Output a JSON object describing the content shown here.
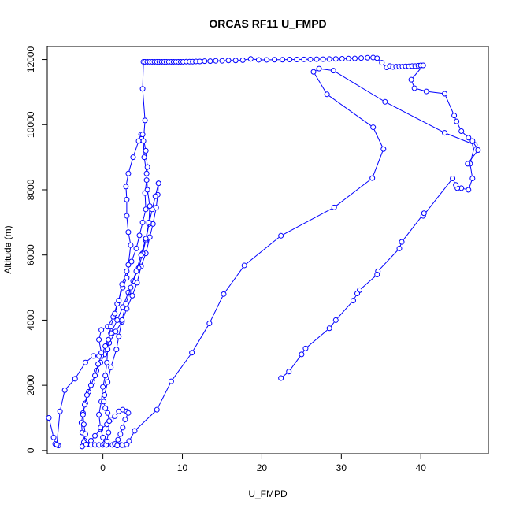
{
  "chart_data": {
    "type": "line",
    "title": "ORCAS RF11 U_FMPD",
    "xlabel": "U_FMPD",
    "ylabel": "Altitude (m)",
    "xlim": [
      -7,
      48.5
    ],
    "ylim": [
      -100,
      12400
    ],
    "xticks": [
      0,
      10,
      20,
      30,
      40
    ],
    "yticks": [
      0,
      2000,
      4000,
      6000,
      8000,
      10000,
      12000
    ],
    "grid": false,
    "series_color": "#0000ff",
    "marker": "open-circle",
    "series": [
      {
        "values": [
          [
            7.0,
            8200
          ],
          [
            6.9,
            7850
          ],
          [
            6.7,
            7450
          ],
          [
            6.3,
            6950
          ],
          [
            5.9,
            6550
          ],
          [
            5.4,
            6050
          ],
          [
            4.8,
            5650
          ],
          [
            4.3,
            5150
          ],
          [
            3.7,
            4750
          ],
          [
            3.0,
            4350
          ],
          [
            2.4,
            3950
          ],
          [
            1.6,
            3650
          ],
          [
            0.8,
            3300
          ],
          [
            0.2,
            2950
          ],
          [
            -0.3,
            2700
          ],
          [
            -0.8,
            2450
          ],
          [
            -1.3,
            2100
          ],
          [
            -1.8,
            1800
          ],
          [
            -2.2,
            1450
          ],
          [
            -2.5,
            1150
          ],
          [
            -2.7,
            850
          ],
          [
            -2.6,
            550
          ],
          [
            -2.3,
            300
          ],
          [
            -2.0,
            180
          ],
          [
            -1.5,
            170
          ],
          [
            -1.0,
            170
          ],
          [
            -0.5,
            170
          ],
          [
            0.0,
            170
          ],
          [
            0.5,
            170
          ],
          [
            1.2,
            170
          ],
          [
            1.8,
            170
          ],
          [
            2.3,
            170
          ],
          [
            2.8,
            170
          ],
          [
            3.3,
            290
          ],
          [
            4.0,
            600
          ],
          [
            6.8,
            1250
          ],
          [
            8.6,
            2120
          ],
          [
            11.2,
            3000
          ],
          [
            13.4,
            3900
          ],
          [
            15.2,
            4800
          ],
          [
            17.8,
            5680
          ],
          [
            22.4,
            6590
          ],
          [
            29.1,
            7460
          ],
          [
            33.9,
            8360
          ],
          [
            35.3,
            9250
          ],
          [
            34.0,
            9920
          ],
          [
            28.2,
            10930
          ],
          [
            26.5,
            11620
          ],
          [
            27.2,
            11720
          ],
          [
            29.0,
            11660
          ],
          [
            35.5,
            10700
          ],
          [
            43.0,
            9750
          ],
          [
            46.8,
            9380
          ],
          [
            46.2,
            8800
          ],
          [
            46.5,
            8350
          ],
          [
            46.0,
            8000
          ],
          [
            45.1,
            8050
          ],
          [
            44.6,
            8050
          ],
          [
            44.4,
            8150
          ],
          [
            44.0,
            8350
          ],
          [
            40.3,
            7200
          ],
          [
            40.4,
            7280
          ],
          [
            37.6,
            6400
          ],
          [
            37.3,
            6200
          ],
          [
            34.6,
            5500
          ],
          [
            34.5,
            5400
          ],
          [
            32.3,
            4920
          ],
          [
            32.0,
            4820
          ],
          [
            31.5,
            4600
          ],
          [
            29.3,
            4000
          ],
          [
            28.5,
            3750
          ],
          [
            25.5,
            3130
          ],
          [
            25.0,
            2950
          ],
          [
            23.4,
            2420
          ],
          [
            22.4,
            2220
          ]
        ]
      },
      {
        "values": [
          [
            7.0,
            8200
          ],
          [
            6.6,
            7800
          ],
          [
            6.2,
            7400
          ],
          [
            5.8,
            6950
          ],
          [
            5.4,
            6450
          ],
          [
            5.0,
            6050
          ],
          [
            4.5,
            5600
          ],
          [
            3.8,
            5200
          ],
          [
            3.2,
            4850
          ],
          [
            2.5,
            4400
          ],
          [
            1.8,
            4000
          ],
          [
            1.0,
            3600
          ],
          [
            0.3,
            3200
          ],
          [
            -0.2,
            2900
          ],
          [
            -0.6,
            2650
          ],
          [
            -1.0,
            2300
          ],
          [
            -1.5,
            2000
          ],
          [
            -2.0,
            1700
          ],
          [
            -2.3,
            1400
          ],
          [
            -2.5,
            1100
          ],
          [
            -2.4,
            800
          ],
          [
            -2.2,
            500
          ],
          [
            -2.4,
            250
          ],
          [
            -2.6,
            120
          ],
          [
            -2.1,
            180
          ],
          [
            -1.5,
            300
          ],
          [
            -1.0,
            450
          ],
          [
            -0.3,
            650
          ],
          [
            0.5,
            800
          ],
          [
            1.0,
            950
          ],
          [
            1.5,
            1050
          ],
          [
            2.0,
            1200
          ],
          [
            2.5,
            1250
          ],
          [
            3.0,
            1200
          ],
          [
            3.2,
            1150
          ],
          [
            2.8,
            950
          ],
          [
            2.5,
            700
          ],
          [
            2.2,
            500
          ],
          [
            1.9,
            330
          ],
          [
            1.5,
            200
          ],
          [
            1.8,
            150
          ],
          [
            2.4,
            160
          ],
          [
            3.0,
            180
          ]
        ]
      },
      {
        "values": [
          [
            -6.8,
            1000
          ],
          [
            -6.2,
            400
          ],
          [
            -6.0,
            200
          ],
          [
            -5.6,
            150
          ],
          [
            -5.8,
            180
          ],
          [
            -5.4,
            1200
          ],
          [
            -4.8,
            1850
          ],
          [
            -3.5,
            2200
          ],
          [
            -2.2,
            2700
          ],
          [
            -1.2,
            2900
          ],
          [
            -0.5,
            2900
          ],
          [
            -0.2,
            3000
          ],
          [
            -0.5,
            3400
          ],
          [
            -0.2,
            3700
          ],
          [
            0.6,
            3800
          ],
          [
            1.3,
            4100
          ],
          [
            1.8,
            4500
          ],
          [
            2.5,
            5000
          ],
          [
            3.0,
            5300
          ],
          [
            3.2,
            5700
          ],
          [
            3.5,
            6300
          ],
          [
            3.2,
            6700
          ],
          [
            3.0,
            7200
          ],
          [
            3.0,
            7700
          ],
          [
            2.9,
            8100
          ],
          [
            3.2,
            8500
          ],
          [
            3.8,
            9000
          ],
          [
            4.5,
            9500
          ],
          [
            4.8,
            9700
          ],
          [
            5.0,
            9700
          ],
          [
            5.4,
            9200
          ],
          [
            5.6,
            8700
          ],
          [
            5.5,
            8300
          ],
          [
            5.3,
            7900
          ],
          [
            5.4,
            7400
          ],
          [
            5.0,
            7000
          ],
          [
            4.6,
            6600
          ],
          [
            4.2,
            6200
          ],
          [
            3.6,
            5800
          ],
          [
            3.0,
            5500
          ],
          [
            2.4,
            5100
          ],
          [
            2.0,
            4600
          ],
          [
            1.5,
            4200
          ],
          [
            1.0,
            3800
          ],
          [
            0.7,
            3400
          ],
          [
            0.6,
            3100
          ],
          [
            0.5,
            2700
          ],
          [
            0.3,
            2300
          ],
          [
            0.0,
            1950
          ],
          [
            -0.2,
            1500
          ],
          [
            -0.5,
            1100
          ],
          [
            -0.3,
            700
          ],
          [
            0.0,
            400
          ],
          [
            0.2,
            200
          ],
          [
            0.4,
            170
          ],
          [
            0.5,
            280
          ],
          [
            0.7,
            550
          ],
          [
            0.8,
            900
          ],
          [
            0.6,
            1150
          ],
          [
            0.3,
            1300
          ],
          [
            0.1,
            1500
          ],
          [
            0.2,
            1700
          ],
          [
            0.6,
            2100
          ],
          [
            1.0,
            2550
          ],
          [
            1.7,
            3100
          ],
          [
            2.0,
            3500
          ],
          [
            2.4,
            4000
          ],
          [
            2.9,
            4500
          ],
          [
            3.5,
            5000
          ],
          [
            4.2,
            5500
          ],
          [
            4.8,
            6000
          ],
          [
            5.4,
            6500
          ],
          [
            5.8,
            7000
          ],
          [
            5.9,
            7500
          ],
          [
            5.6,
            8000
          ],
          [
            5.5,
            8500
          ],
          [
            5.2,
            9000
          ],
          [
            5.1,
            9500
          ],
          [
            5.3,
            10130
          ],
          [
            5.0,
            11100
          ],
          [
            5.1,
            11930
          ],
          [
            5.3,
            11930
          ],
          [
            5.6,
            11930
          ],
          [
            5.9,
            11930
          ],
          [
            6.2,
            11930
          ],
          [
            6.5,
            11930
          ],
          [
            6.8,
            11930
          ],
          [
            7.1,
            11930
          ],
          [
            7.4,
            11930
          ],
          [
            7.7,
            11930
          ],
          [
            8.0,
            11930
          ],
          [
            8.3,
            11930
          ],
          [
            8.6,
            11930
          ],
          [
            8.9,
            11930
          ],
          [
            9.2,
            11930
          ],
          [
            9.5,
            11930
          ],
          [
            9.8,
            11930
          ],
          [
            10.1,
            11930
          ],
          [
            10.5,
            11935
          ],
          [
            10.9,
            11935
          ],
          [
            11.3,
            11935
          ],
          [
            11.7,
            11940
          ],
          [
            12.2,
            11940
          ],
          [
            12.8,
            11950
          ],
          [
            13.5,
            11950
          ],
          [
            14.2,
            11960
          ],
          [
            15.0,
            11960
          ],
          [
            15.8,
            11970
          ],
          [
            16.7,
            11970
          ],
          [
            17.6,
            11980
          ],
          [
            18.6,
            12020
          ],
          [
            19.6,
            11990
          ],
          [
            20.6,
            11990
          ],
          [
            21.6,
            11995
          ],
          [
            22.6,
            11995
          ],
          [
            23.5,
            12000
          ],
          [
            24.4,
            12000
          ],
          [
            25.3,
            12005
          ],
          [
            26.1,
            12005
          ],
          [
            26.9,
            12010
          ],
          [
            27.7,
            12010
          ],
          [
            28.5,
            12015
          ],
          [
            29.3,
            12020
          ],
          [
            30.1,
            12025
          ],
          [
            30.9,
            12030
          ],
          [
            31.7,
            12035
          ],
          [
            32.5,
            12045
          ],
          [
            33.3,
            12055
          ],
          [
            34.0,
            12060
          ],
          [
            34.5,
            12040
          ],
          [
            35.1,
            11900
          ],
          [
            35.7,
            11760
          ],
          [
            36.1,
            11800
          ],
          [
            36.5,
            11770
          ],
          [
            36.9,
            11780
          ],
          [
            37.3,
            11780
          ],
          [
            37.7,
            11780
          ],
          [
            38.1,
            11790
          ],
          [
            38.5,
            11790
          ],
          [
            38.9,
            11800
          ],
          [
            39.3,
            11800
          ],
          [
            39.7,
            11810
          ],
          [
            40.0,
            11820
          ],
          [
            40.3,
            11820
          ],
          [
            38.8,
            11380
          ],
          [
            39.2,
            11120
          ],
          [
            40.7,
            11020
          ],
          [
            43.0,
            10950
          ],
          [
            44.2,
            10280
          ],
          [
            44.5,
            10100
          ],
          [
            45.1,
            9800
          ],
          [
            46.0,
            9600
          ],
          [
            46.5,
            9500
          ],
          [
            47.2,
            9220
          ],
          [
            45.9,
            8800
          ]
        ]
      }
    ]
  }
}
